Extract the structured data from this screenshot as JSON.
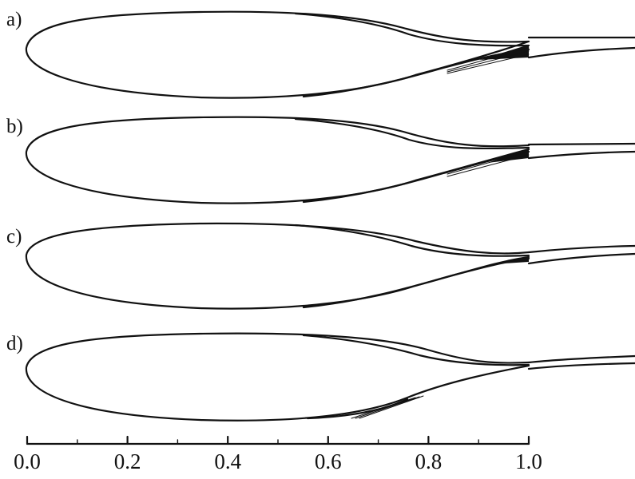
{
  "panels": [
    {
      "label": "a)"
    },
    {
      "label": "b)"
    },
    {
      "label": "c)"
    },
    {
      "label": "d)"
    }
  ],
  "axis": {
    "ticks": [
      "0.0",
      "0.2",
      "0.4",
      "0.6",
      "0.8",
      "1.0"
    ]
  },
  "colors": {
    "line": "#111111",
    "background": "#ffffff"
  }
}
